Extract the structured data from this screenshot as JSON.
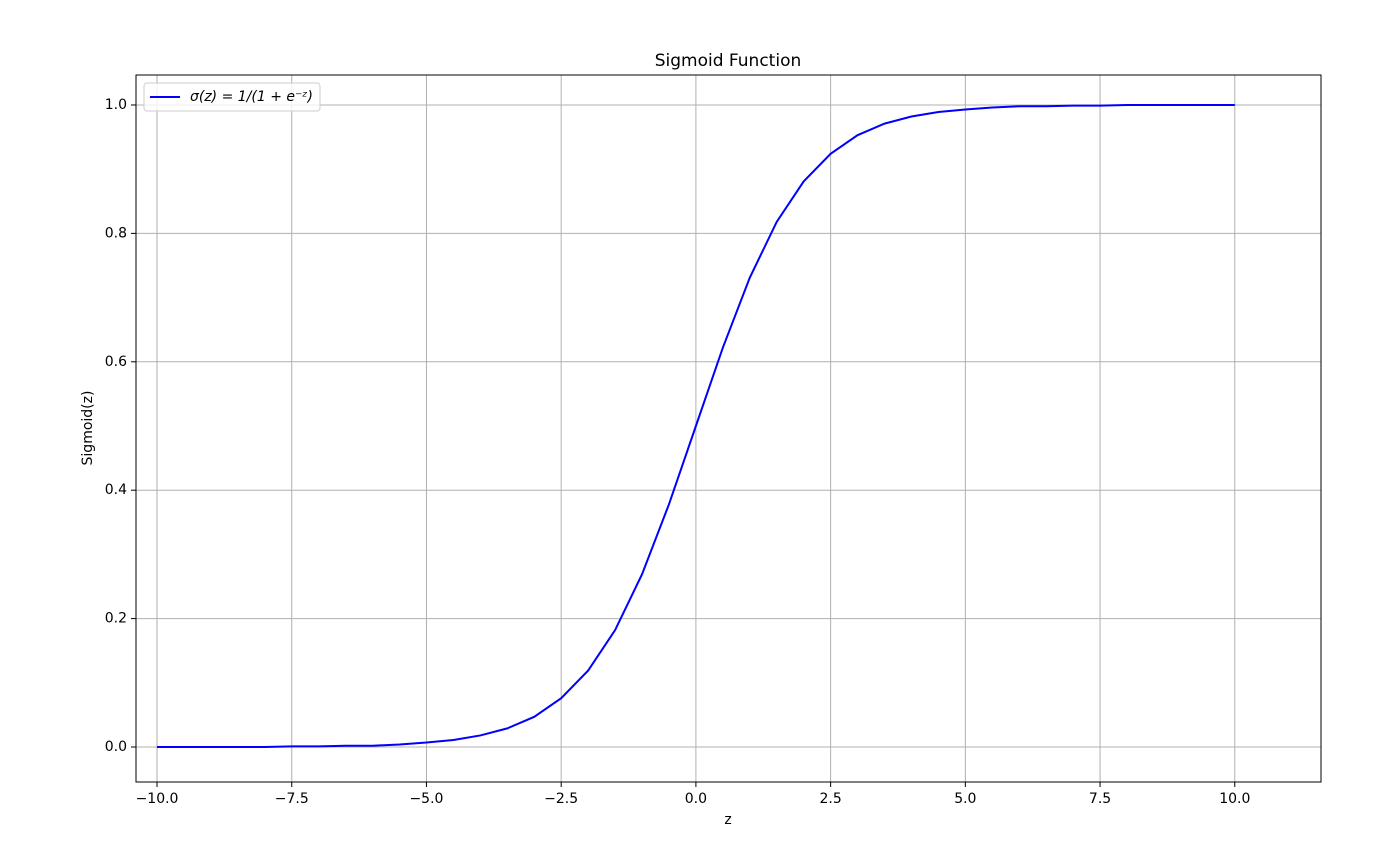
{
  "chart_data": {
    "type": "line",
    "title": "Sigmoid Function",
    "xlabel": "z",
    "ylabel": "Sigmoid(z)",
    "x": [
      -10,
      -9.5,
      -9,
      -8.5,
      -8,
      -7.5,
      -7,
      -6.5,
      -6,
      -5.5,
      -5,
      -4.5,
      -4,
      -3.5,
      -3,
      -2.5,
      -2,
      -1.5,
      -1,
      -0.5,
      0,
      0.5,
      1,
      1.5,
      2,
      2.5,
      3,
      3.5,
      4,
      4.5,
      5,
      5.5,
      6,
      6.5,
      7,
      7.5,
      8,
      8.5,
      9,
      9.5,
      10
    ],
    "series": [
      {
        "name": "σ(z) = 1/(1 + e⁻ᶻ)",
        "color": "blue",
        "values": [
          0,
          0,
          0,
          0,
          0,
          0.001,
          0.001,
          0.002,
          0.002,
          0.004,
          0.007,
          0.011,
          0.018,
          0.029,
          0.047,
          0.076,
          0.119,
          0.182,
          0.269,
          0.378,
          0.5,
          0.622,
          0.731,
          0.818,
          0.881,
          0.924,
          0.953,
          0.971,
          0.982,
          0.989,
          0.993,
          0.996,
          0.998,
          0.998,
          0.999,
          0.999,
          1,
          1,
          1,
          1,
          1
        ]
      }
    ],
    "xlim": [
      -10.39,
      11.6
    ],
    "ylim": [
      -0.0545,
      1.0467
    ],
    "xticks": [
      {
        "value": -10,
        "label": "−10.0"
      },
      {
        "value": -7.5,
        "label": "−7.5"
      },
      {
        "value": -5,
        "label": "−5.0"
      },
      {
        "value": -2.5,
        "label": "−2.5"
      },
      {
        "value": 0,
        "label": "0.0"
      },
      2.5,
      {
        "value": 5,
        "label": "5.0"
      },
      7.5,
      {
        "value": 10,
        "label": "10.0"
      }
    ],
    "yticks": [
      {
        "value": 0,
        "label": "0.0"
      },
      0.2,
      0.4,
      0.6,
      0.8,
      {
        "value": 1,
        "label": "1.0"
      }
    ],
    "grid": true,
    "legend": "upper left"
  }
}
